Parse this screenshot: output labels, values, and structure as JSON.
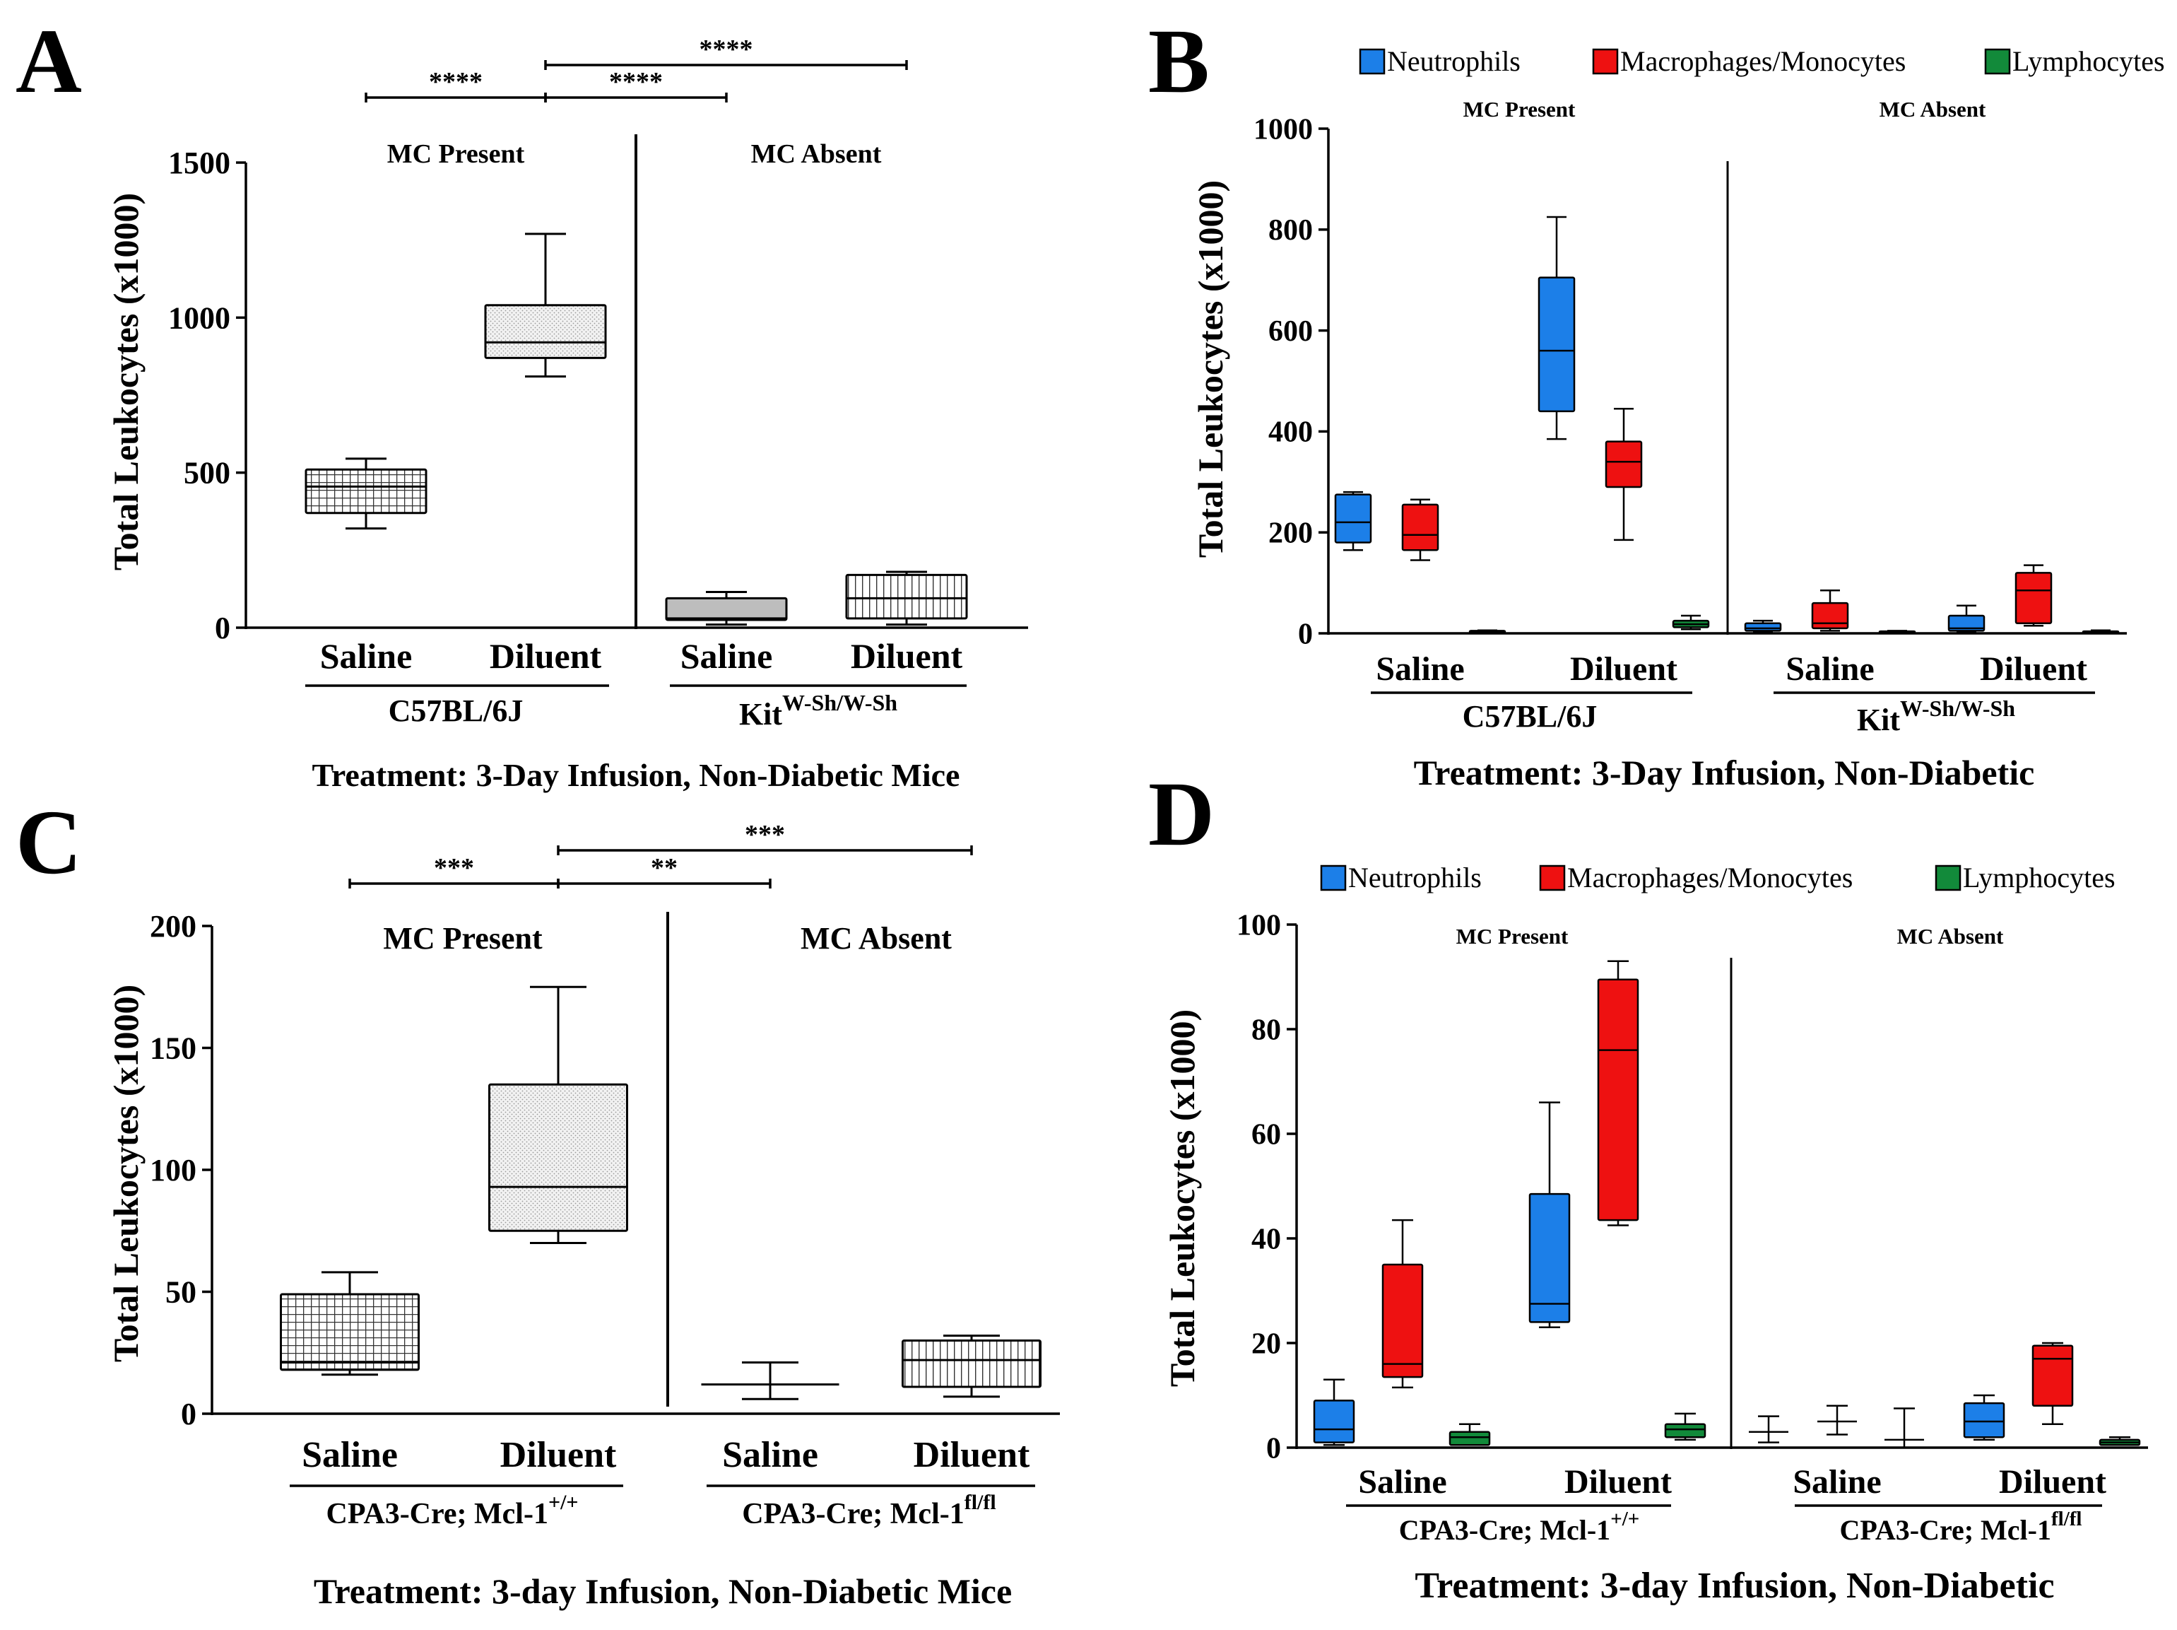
{
  "panels": {
    "A": {
      "letter": "A",
      "ylabel": "Total Leukocytes (x1000)",
      "ylim": [
        0,
        1500
      ],
      "yticks": [
        "0",
        "500",
        "1000",
        "1500"
      ],
      "region_left": "MC Present",
      "region_right": "MC Absent",
      "categories": [
        "Saline",
        "Diluent",
        "Saline",
        "Diluent"
      ],
      "strain_left": "C57BL/6J",
      "strain_right_base": "Kit",
      "strain_right_sup": "W-Sh/W-Sh",
      "treatment": "Treatment: 3-Day Infusion, Non-Diabetic Mice",
      "significance": [
        {
          "from": 0,
          "to": 1,
          "label": "****"
        },
        {
          "from": 1,
          "to": 2,
          "label": "****"
        },
        {
          "from": 1,
          "to": 3,
          "label": "****"
        }
      ]
    },
    "B": {
      "letter": "B",
      "ylabel": "Total Leukocytes (x1000)",
      "ylim": [
        0,
        1000
      ],
      "yticks": [
        "0",
        "200",
        "400",
        "600",
        "800",
        "1000"
      ],
      "region_left": "MC Present",
      "region_right": "MC Absent",
      "categories": [
        "Saline",
        "Diluent",
        "Saline",
        "Diluent"
      ],
      "strain_left": "C57BL/6J",
      "strain_right_base": "Kit",
      "strain_right_sup": "W-Sh/W-Sh",
      "treatment": "Treatment: 3-Day Infusion, Non-Diabetic",
      "legend": [
        "Neutrophils",
        "Macrophages/Monocytes",
        "Lymphocytes"
      ]
    },
    "C": {
      "letter": "C",
      "ylabel": "Total Leukocytes (x1000)",
      "ylim": [
        0,
        200
      ],
      "yticks": [
        "0",
        "50",
        "100",
        "150",
        "200"
      ],
      "region_left": "MC Present",
      "region_right": "MC Absent",
      "categories": [
        "Saline",
        "Diluent",
        "Saline",
        "Diluent"
      ],
      "strain_left_base": "CPA3-Cre; Mcl-1",
      "strain_left_sup": "+/+",
      "strain_right_base": "CPA3-Cre; Mcl-1",
      "strain_right_sup": "fl/fl",
      "treatment": "Treatment: 3-day Infusion, Non-Diabetic Mice",
      "significance": [
        {
          "from": 0,
          "to": 1,
          "label": "***"
        },
        {
          "from": 1,
          "to": 2,
          "label": "**"
        },
        {
          "from": 1,
          "to": 3,
          "label": "***"
        }
      ]
    },
    "D": {
      "letter": "D",
      "ylabel": "Total Leukocytes (x1000)",
      "ylim": [
        0,
        100
      ],
      "yticks": [
        "0",
        "20",
        "40",
        "60",
        "80",
        "100"
      ],
      "region_left": "MC Present",
      "region_right": "MC Absent",
      "categories": [
        "Saline",
        "Diluent",
        "Saline",
        "Diluent"
      ],
      "strain_left_base": "CPA3-Cre; Mcl-1",
      "strain_left_sup": "+/+",
      "strain_right_base": "CPA3-Cre; Mcl-1",
      "strain_right_sup": "fl/fl",
      "treatment": "Treatment: 3-day Infusion, Non-Diabetic",
      "legend": [
        "Neutrophils",
        "Macrophages/Monocytes",
        "Lymphocytes"
      ]
    }
  },
  "colors": {
    "neutrophils": "#1c7fe8",
    "macrophages": "#ee1111",
    "lymphocytes": "#128a3a",
    "axis": "#000000"
  },
  "chart_data": [
    {
      "panel": "A",
      "type": "box",
      "title": "",
      "ylabel": "Total Leukocytes (x1000)",
      "ylim": [
        0,
        1500
      ],
      "categories": [
        "Saline (C57BL/6J)",
        "Diluent (C57BL/6J)",
        "Saline (KitW-Sh/W-Sh)",
        "Diluent (KitW-Sh/W-Sh)"
      ],
      "series": [
        {
          "name": "Total",
          "boxes": [
            {
              "min": 320,
              "q1": 370,
              "median": 455,
              "q3": 510,
              "max": 545
            },
            {
              "min": 810,
              "q1": 870,
              "median": 920,
              "q3": 1040,
              "max": 1270
            },
            {
              "min": 10,
              "q1": 25,
              "median": 30,
              "q3": 95,
              "max": 115
            },
            {
              "min": 10,
              "q1": 30,
              "median": 95,
              "q3": 170,
              "max": 180
            }
          ]
        }
      ]
    },
    {
      "panel": "B",
      "type": "box",
      "ylabel": "Total Leukocytes (x1000)",
      "ylim": [
        0,
        1000
      ],
      "categories": [
        "Saline (C57BL/6J)",
        "Diluent (C57BL/6J)",
        "Saline (KitW-Sh/W-Sh)",
        "Diluent (KitW-Sh/W-Sh)"
      ],
      "series": [
        {
          "name": "Neutrophils",
          "boxes": [
            {
              "min": 165,
              "q1": 180,
              "median": 220,
              "q3": 275,
              "max": 280
            },
            {
              "min": 385,
              "q1": 440,
              "median": 560,
              "q3": 705,
              "max": 825
            },
            {
              "min": 3,
              "q1": 5,
              "median": 10,
              "q3": 20,
              "max": 25
            },
            {
              "min": 3,
              "q1": 5,
              "median": 10,
              "q3": 35,
              "max": 55
            }
          ]
        },
        {
          "name": "Macrophages/Monocytes",
          "boxes": [
            {
              "min": 145,
              "q1": 165,
              "median": 195,
              "q3": 255,
              "max": 265
            },
            {
              "min": 185,
              "q1": 290,
              "median": 340,
              "q3": 380,
              "max": 445
            },
            {
              "min": 5,
              "q1": 10,
              "median": 20,
              "q3": 60,
              "max": 85
            },
            {
              "min": 15,
              "q1": 20,
              "median": 85,
              "q3": 120,
              "max": 135
            }
          ]
        },
        {
          "name": "Lymphocytes",
          "boxes": [
            {
              "min": 1,
              "q1": 2,
              "median": 3,
              "q3": 5,
              "max": 6
            },
            {
              "min": 8,
              "q1": 12,
              "median": 18,
              "q3": 25,
              "max": 35
            },
            {
              "min": 1,
              "q1": 2,
              "median": 2,
              "q3": 4,
              "max": 5
            },
            {
              "min": 1,
              "q1": 2,
              "median": 3,
              "q3": 4,
              "max": 6
            }
          ]
        }
      ]
    },
    {
      "panel": "C",
      "type": "box",
      "ylabel": "Total Leukocytes (x1000)",
      "ylim": [
        0,
        200
      ],
      "categories": [
        "Saline (Mcl-1+/+)",
        "Diluent (Mcl-1+/+)",
        "Saline (Mcl-1fl/fl)",
        "Diluent (Mcl-1fl/fl)"
      ],
      "series": [
        {
          "name": "Total",
          "boxes": [
            {
              "min": 16,
              "q1": 18,
              "median": 21,
              "q3": 49,
              "max": 58
            },
            {
              "min": 70,
              "q1": 75,
              "median": 93,
              "q3": 135,
              "max": 175
            },
            {
              "min": 6,
              "q1": 12,
              "median": 12,
              "q3": 12,
              "max": 21
            },
            {
              "min": 7,
              "q1": 11,
              "median": 22,
              "q3": 30,
              "max": 32
            }
          ]
        }
      ]
    },
    {
      "panel": "D",
      "type": "box",
      "ylabel": "Total Leukocytes (x1000)",
      "ylim": [
        0,
        100
      ],
      "categories": [
        "Saline (Mcl-1+/+)",
        "Diluent (Mcl-1+/+)",
        "Saline (Mcl-1fl/fl)",
        "Diluent (Mcl-1fl/fl)"
      ],
      "series": [
        {
          "name": "Neutrophils",
          "boxes": [
            {
              "min": 0.5,
              "q1": 1,
              "median": 3.5,
              "q3": 9,
              "max": 13
            },
            {
              "min": 23,
              "q1": 24,
              "median": 27.5,
              "q3": 48.5,
              "max": 66
            },
            {
              "min": 1,
              "q1": 3,
              "median": 3,
              "q3": 3,
              "max": 6
            },
            {
              "min": 1.5,
              "q1": 2,
              "median": 5,
              "q3": 8.5,
              "max": 10
            }
          ]
        },
        {
          "name": "Macrophages/Monocytes",
          "boxes": [
            {
              "min": 11.5,
              "q1": 13.5,
              "median": 16,
              "q3": 35,
              "max": 43.5
            },
            {
              "min": 42.5,
              "q1": 43.5,
              "median": 76,
              "q3": 89.5,
              "max": 93
            },
            {
              "min": 2.5,
              "q1": 5,
              "median": 5,
              "q3": 5,
              "max": 8
            },
            {
              "min": 4.5,
              "q1": 8,
              "median": 17,
              "q3": 19.5,
              "max": 20
            }
          ]
        },
        {
          "name": "Lymphocytes",
          "boxes": [
            {
              "min": 0.5,
              "q1": 0.5,
              "median": 2,
              "q3": 3,
              "max": 4.5
            },
            {
              "min": 1.5,
              "q1": 2,
              "median": 3.5,
              "q3": 4.5,
              "max": 6.5
            },
            {
              "min": 0,
              "q1": 1.5,
              "median": 1.5,
              "q3": 1.5,
              "max": 7.5
            },
            {
              "min": 0.5,
              "q1": 0.5,
              "median": 1,
              "q3": 1.5,
              "max": 2
            }
          ]
        }
      ]
    }
  ]
}
